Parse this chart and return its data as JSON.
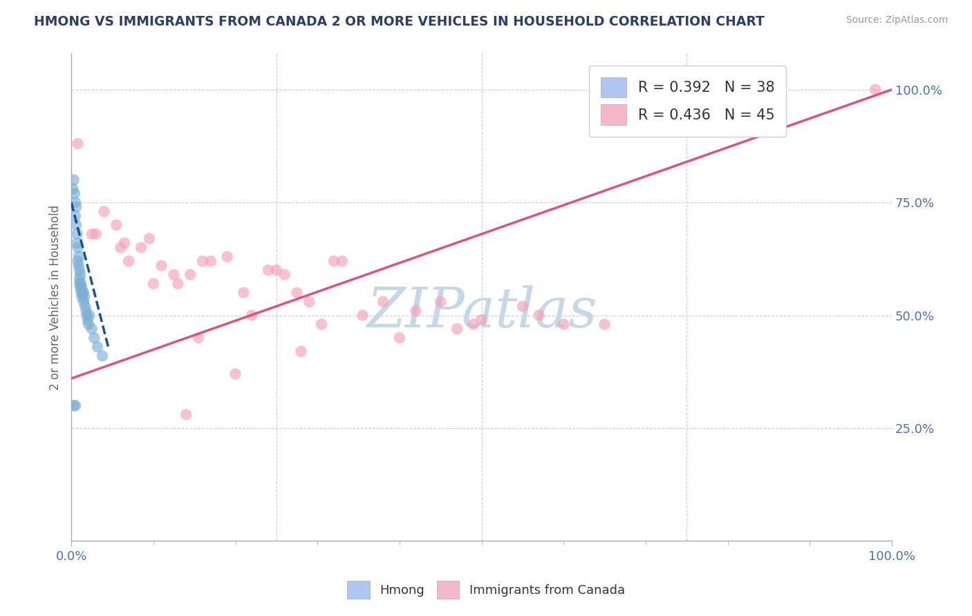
{
  "title": "HMONG VS IMMIGRANTS FROM CANADA 2 OR MORE VEHICLES IN HOUSEHOLD CORRELATION CHART",
  "source": "Source: ZipAtlas.com",
  "ylabel": "2 or more Vehicles in Household",
  "xlim": [
    0,
    100
  ],
  "ylim": [
    0,
    108
  ],
  "legend_entries": [
    {
      "label_r": "R = 0.392",
      "label_n": "N = 38",
      "color": "#aec6f0"
    },
    {
      "label_r": "R = 0.436",
      "label_n": "N = 45",
      "color": "#f4b8c8"
    }
  ],
  "bottom_legend": [
    "Hmong",
    "Immigrants from Canada"
  ],
  "bottom_legend_colors": [
    "#aec6f0",
    "#f4b8c8"
  ],
  "watermark": "ZIPatlas",
  "hmong_x": [
    0.2,
    0.3,
    0.4,
    0.5,
    0.5,
    0.6,
    0.6,
    0.7,
    0.7,
    0.8,
    0.8,
    0.9,
    0.9,
    1.0,
    1.0,
    1.0,
    1.1,
    1.1,
    1.2,
    1.2,
    1.3,
    1.3,
    1.4,
    1.5,
    1.5,
    1.6,
    1.7,
    1.8,
    1.9,
    2.0,
    2.1,
    2.2,
    2.5,
    2.8,
    3.2,
    3.8,
    0.3,
    0.5
  ],
  "hmong_y": [
    78,
    80,
    77,
    75,
    72,
    74,
    70,
    68,
    66,
    65,
    62,
    63,
    61,
    60,
    58,
    57,
    59,
    56,
    55,
    57,
    54,
    56,
    55,
    53,
    55,
    54,
    52,
    51,
    50,
    49,
    48,
    50,
    47,
    45,
    43,
    41,
    30,
    30
  ],
  "canada_x": [
    0.8,
    2.5,
    4.0,
    5.5,
    6.0,
    7.0,
    8.5,
    10.0,
    11.0,
    12.5,
    13.0,
    14.0,
    15.5,
    17.0,
    19.0,
    21.0,
    24.0,
    26.0,
    27.5,
    29.0,
    30.5,
    33.0,
    35.5,
    38.0,
    42.0,
    45.0,
    47.0,
    50.0,
    55.0,
    60.0,
    98.0,
    3.0,
    6.5,
    9.5,
    14.5,
    20.0,
    25.0,
    32.0,
    40.0,
    49.0,
    57.0,
    65.0,
    28.0,
    16.0,
    22.0
  ],
  "canada_y": [
    88,
    68,
    73,
    70,
    65,
    62,
    65,
    57,
    61,
    59,
    57,
    28,
    45,
    62,
    63,
    55,
    60,
    59,
    55,
    53,
    48,
    62,
    50,
    53,
    51,
    53,
    47,
    49,
    52,
    48,
    100,
    68,
    66,
    67,
    59,
    37,
    60,
    62,
    45,
    48,
    50,
    48,
    42,
    62,
    50
  ],
  "hmong_trend": [
    0.0,
    75.0,
    4.5,
    43.0
  ],
  "canada_trend": [
    0.0,
    36.0,
    100.0,
    100.0
  ],
  "title_color": "#2c3e6b",
  "blue_dot_color": "#7bafd4",
  "pink_dot_color": "#f4a0b8",
  "blue_line_color": "#1a4fa0",
  "pink_line_color": "#e05080",
  "blue_legend_color": "#aec6f0",
  "pink_legend_color": "#f4b8c8",
  "grid_color": "#cccccc",
  "tick_color": "#4472c4",
  "watermark_color": "#c5d8ea",
  "axis_color": "#aaaaaa"
}
